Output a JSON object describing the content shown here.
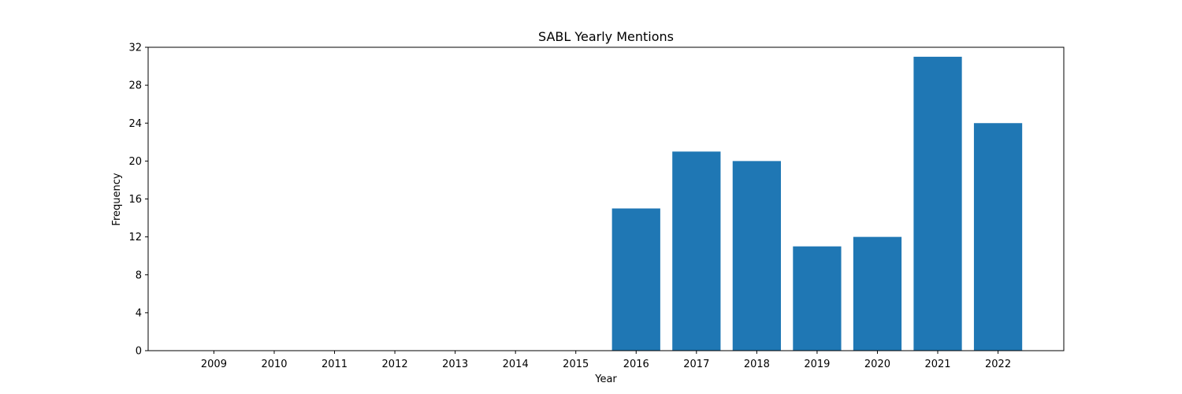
{
  "chart_data": {
    "type": "bar",
    "title": "SABL Yearly Mentions",
    "xlabel": "Year",
    "ylabel": "Frequency",
    "categories": [
      "2009",
      "2010",
      "2011",
      "2012",
      "2013",
      "2014",
      "2015",
      "2016",
      "2017",
      "2018",
      "2019",
      "2020",
      "2021",
      "2022"
    ],
    "values": [
      0,
      0,
      0,
      0,
      0,
      0,
      0,
      15,
      21,
      20,
      11,
      12,
      31,
      24
    ],
    "ylim": [
      0,
      32
    ],
    "yticks": [
      0,
      4,
      8,
      12,
      16,
      20,
      24,
      28,
      32
    ],
    "grid": false,
    "bar_color": "#1f77b4"
  }
}
